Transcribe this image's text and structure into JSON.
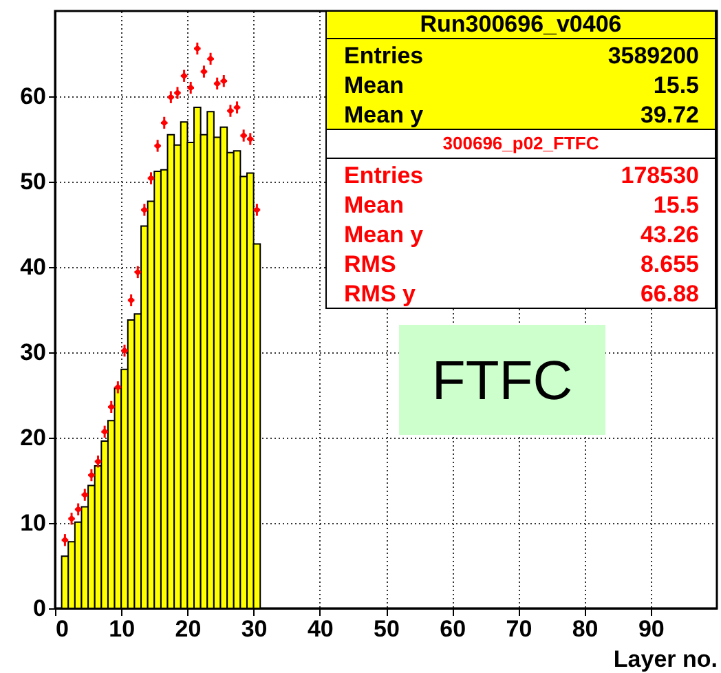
{
  "chart_data": {
    "type": "histogram",
    "xlabel": "Layer no.",
    "xlim": [
      0,
      100
    ],
    "ylim": [
      0,
      70
    ],
    "xticks": [
      0,
      10,
      20,
      30,
      40,
      50,
      60,
      70,
      80,
      90
    ],
    "yticks": [
      0,
      10,
      20,
      30,
      40,
      50,
      60
    ],
    "grid": true,
    "marker": "circle",
    "series": [
      {
        "name": "Run300696_v0406",
        "color": "#ffff00",
        "bins": [
          1,
          2,
          3,
          4,
          5,
          6,
          7,
          8,
          9,
          10,
          11,
          12,
          13,
          14,
          15,
          16,
          17,
          18,
          19,
          20,
          21,
          22,
          23,
          24,
          25,
          26,
          27,
          28,
          29,
          30,
          31
        ],
        "values": [
          6.1,
          7.8,
          10.1,
          11.9,
          14.4,
          16.7,
          19.6,
          22.0,
          25.8,
          28.0,
          33.8,
          34.5,
          44.8,
          47.7,
          51.2,
          51.4,
          55.5,
          54.3,
          57.0,
          54.6,
          58.7,
          55.5,
          58.2,
          55.2,
          56.4,
          53.4,
          53.6,
          50.6,
          51.0,
          42.7
        ]
      },
      {
        "name": "300696_p02_FTFC",
        "type": "scatter",
        "color": "#ff0000",
        "x": [
          1.5,
          2.5,
          3.5,
          4.5,
          5.5,
          6.5,
          7.5,
          8.5,
          9.5,
          10.5,
          11.5,
          12.5,
          13.5,
          14.5,
          15.5,
          16.5,
          17.5,
          18.5,
          19.5,
          20.5,
          21.5,
          22.5,
          23.5,
          24.5,
          25.5,
          26.5,
          27.5,
          28.5,
          29.5,
          30.5
        ],
        "values": [
          8.0,
          10.5,
          11.6,
          13.3,
          15.6,
          17.2,
          20.7,
          23.6,
          25.9,
          30.2,
          36.1,
          39.4,
          46.7,
          50.4,
          54.2,
          56.9,
          59.9,
          60.4,
          62.4,
          61.0,
          65.6,
          62.9,
          64.4,
          61.5,
          61.8,
          58.3,
          58.7,
          55.4,
          55.0,
          46.7
        ],
        "errors": [
          0.7,
          0.7,
          0.7,
          0.7,
          0.7,
          0.7,
          0.7,
          0.7,
          0.7,
          0.7,
          0.7,
          0.7,
          0.7,
          0.7,
          0.7,
          0.7,
          0.7,
          0.7,
          0.7,
          0.7,
          0.7,
          0.7,
          0.7,
          0.7,
          0.7,
          0.7,
          0.7,
          0.7,
          0.7,
          0.7
        ],
        "xerrors": [
          0.5,
          0.5,
          0.5,
          0.5,
          0.5,
          0.5,
          0.5,
          0.5,
          0.5,
          0.5,
          0.5,
          0.5,
          0.5,
          0.5,
          0.5,
          0.5,
          0.5,
          0.5,
          0.5,
          0.5,
          0.5,
          0.5,
          0.5,
          0.5,
          0.5,
          0.5,
          0.5,
          0.5,
          0.5,
          0.5
        ]
      }
    ],
    "annotations": [
      "Entries 3589200",
      "Mean 15.5",
      "Mean y 39.72",
      "Entries 178530",
      "Mean 15.5",
      "Mean y 43.26",
      "RMS 8.655",
      "RMS y 66.88",
      "FTFC"
    ]
  }
}
